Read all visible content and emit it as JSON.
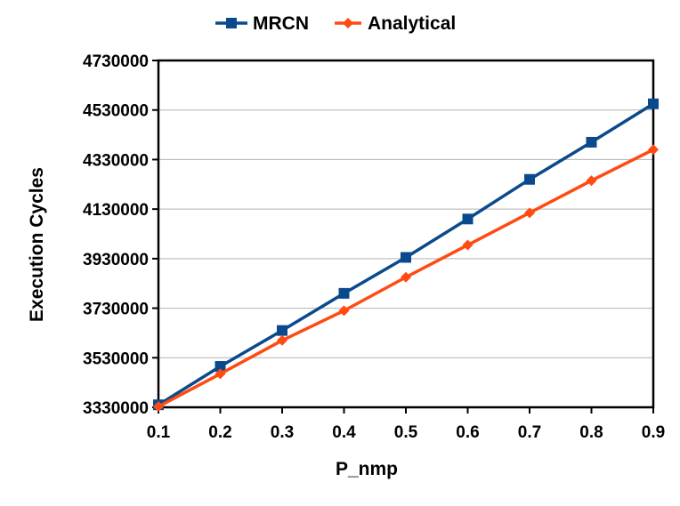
{
  "chart_data": {
    "type": "line",
    "title": "",
    "xlabel": "P_nmp",
    "ylabel": "Execution Cycles",
    "x": [
      0.1,
      0.2,
      0.3,
      0.4,
      0.5,
      0.6,
      0.7,
      0.8,
      0.9
    ],
    "x_tick_labels": [
      "0.1",
      "0.2",
      "0.3",
      "0.4",
      "0.5",
      "0.6",
      "0.7",
      "0.8",
      "0.9"
    ],
    "xlim": [
      0.1,
      0.9
    ],
    "ylim": [
      3330000,
      4730000
    ],
    "y_ticks": [
      3330000,
      3530000,
      3730000,
      3930000,
      4130000,
      4330000,
      4530000,
      4730000
    ],
    "y_tick_labels": [
      "3330000",
      "3530000",
      "3730000",
      "3930000",
      "4130000",
      "4330000",
      "4530000",
      "4730000"
    ],
    "grid": true,
    "legend_position": "top-center",
    "series": [
      {
        "name": "MRCN",
        "color": "#0a4a8c",
        "marker": "square",
        "values": [
          3340000,
          3495000,
          3640000,
          3790000,
          3935000,
          4090000,
          4250000,
          4400000,
          4555000
        ]
      },
      {
        "name": "Analytical",
        "color": "#ff4a12",
        "marker": "diamond",
        "values": [
          3333000,
          3465000,
          3600000,
          3720000,
          3855000,
          3985000,
          4115000,
          4245000,
          4370000
        ]
      }
    ]
  }
}
